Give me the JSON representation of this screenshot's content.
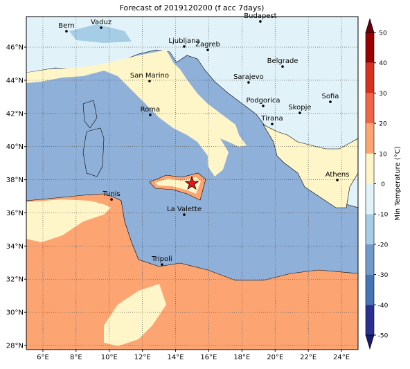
{
  "title": "Forecast of 2019120200 (f acc 7days)",
  "map": {
    "xlim": [
      5,
      25
    ],
    "ylim": [
      27.75,
      47.84
    ],
    "grid": true,
    "xticks": [
      {
        "value": 6,
        "label": "6°E"
      },
      {
        "value": 8,
        "label": "8°E"
      },
      {
        "value": 10,
        "label": "10°E"
      },
      {
        "value": 12,
        "label": "12°E"
      },
      {
        "value": 14,
        "label": "14°E"
      },
      {
        "value": 16,
        "label": "16°E"
      },
      {
        "value": 18,
        "label": "18°E"
      },
      {
        "value": 20,
        "label": "20°E"
      },
      {
        "value": 22,
        "label": "22°E"
      },
      {
        "value": 24,
        "label": "24°E"
      }
    ],
    "yticks": [
      {
        "value": 28,
        "label": "28°N"
      },
      {
        "value": 30,
        "label": "30°N"
      },
      {
        "value": 32,
        "label": "32°N"
      },
      {
        "value": 34,
        "label": "34°N"
      },
      {
        "value": 36,
        "label": "36°N"
      },
      {
        "value": 38,
        "label": "38°N"
      },
      {
        "value": 40,
        "label": "40°N"
      },
      {
        "value": 42,
        "label": "42°N"
      },
      {
        "value": 44,
        "label": "44°N"
      },
      {
        "value": 46,
        "label": "46°N"
      }
    ],
    "cities": [
      {
        "name": "Bern",
        "lon": 7.42,
        "lat": 46.96
      },
      {
        "name": "Vaduz",
        "lon": 9.51,
        "lat": 47.17
      },
      {
        "name": "Budapest",
        "lon": 19.11,
        "lat": 47.55
      },
      {
        "name": "Ljubljana",
        "lon": 14.52,
        "lat": 46.04
      },
      {
        "name": "Zagreb",
        "lon": 15.94,
        "lat": 45.83
      },
      {
        "name": "Belgrade",
        "lon": 20.45,
        "lat": 44.83
      },
      {
        "name": "San Marino",
        "lon": 12.43,
        "lat": 43.95
      },
      {
        "name": "Sarajevo",
        "lon": 18.4,
        "lat": 43.87
      },
      {
        "name": "Sofia",
        "lon": 23.33,
        "lat": 42.7
      },
      {
        "name": "Podgorica",
        "lon": 19.28,
        "lat": 42.45
      },
      {
        "name": "Skopje",
        "lon": 21.49,
        "lat": 42.03
      },
      {
        "name": "Roma",
        "lon": 12.47,
        "lat": 41.91
      },
      {
        "name": "Tirana",
        "lon": 19.82,
        "lat": 41.36
      },
      {
        "name": "Athens",
        "lon": 23.75,
        "lat": 37.98
      },
      {
        "name": "Tunis",
        "lon": 10.14,
        "lat": 36.81
      },
      {
        "name": "La Valette",
        "lon": 14.52,
        "lat": 35.89
      },
      {
        "name": "Tripoli",
        "lon": 13.18,
        "lat": 32.88
      }
    ],
    "marker": {
      "lon": 14.98,
      "lat": 37.77,
      "color": "#e8141b"
    }
  },
  "colorbar": {
    "label": "Min Temperature (°C)",
    "ticks": [
      -50,
      -40,
      -30,
      -20,
      -10,
      0,
      10,
      20,
      30,
      40,
      50
    ],
    "colors": [
      "#2b2f8f",
      "#4575b4",
      "#6f9ac9",
      "#a6cde6",
      "#e1f3f8",
      "#fef6c8",
      "#fca572",
      "#ef6548",
      "#d7301f",
      "#990000"
    ],
    "extend_colors": [
      "#1a1a6e",
      "#67000d"
    ]
  }
}
